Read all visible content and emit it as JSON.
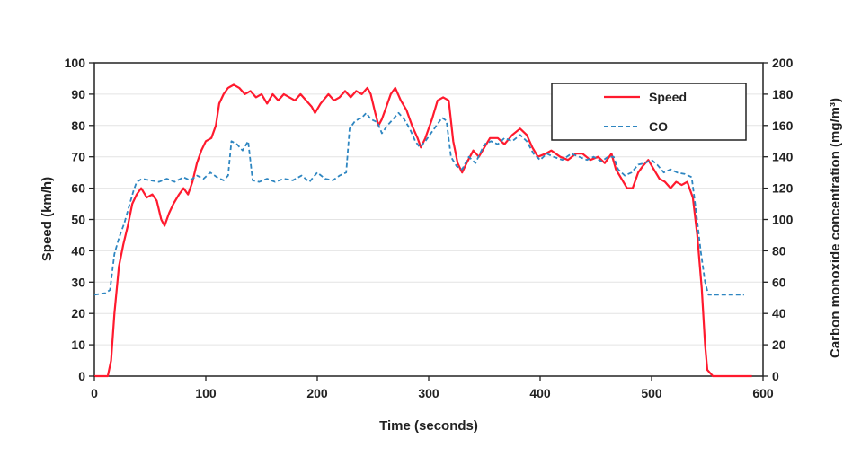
{
  "chart_data": {
    "type": "line",
    "xlabel": "Time (seconds)",
    "ylabel_left": "Speed (km/h)",
    "ylabel_right": "Carbon monoxide concentration (mg/m³)",
    "xlim": [
      0,
      600
    ],
    "ylim_left": [
      0,
      100
    ],
    "ylim_right": [
      0,
      200
    ],
    "x_ticks": [
      0,
      100,
      200,
      300,
      400,
      500,
      600
    ],
    "y_left_ticks": [
      0,
      10,
      20,
      30,
      40,
      50,
      60,
      70,
      80,
      90,
      100
    ],
    "y_right_ticks": [
      0,
      20,
      40,
      60,
      80,
      100,
      120,
      140,
      160,
      180,
      200
    ],
    "grid": true,
    "legend_position": "top-right",
    "series": [
      {
        "name": "Speed",
        "axis": "left",
        "color": "#ff1a2e",
        "style": "solid",
        "points": [
          [
            0,
            0
          ],
          [
            12,
            0
          ],
          [
            15,
            5
          ],
          [
            18,
            20
          ],
          [
            22,
            35
          ],
          [
            26,
            42
          ],
          [
            30,
            48
          ],
          [
            34,
            55
          ],
          [
            38,
            58
          ],
          [
            42,
            60
          ],
          [
            47,
            57
          ],
          [
            52,
            58
          ],
          [
            56,
            56
          ],
          [
            60,
            50
          ],
          [
            63,
            48
          ],
          [
            67,
            52
          ],
          [
            71,
            55
          ],
          [
            76,
            58
          ],
          [
            80,
            60
          ],
          [
            84,
            58
          ],
          [
            88,
            62
          ],
          [
            92,
            68
          ],
          [
            96,
            72
          ],
          [
            100,
            75
          ],
          [
            105,
            76
          ],
          [
            109,
            80
          ],
          [
            112,
            87
          ],
          [
            116,
            90
          ],
          [
            120,
            92
          ],
          [
            125,
            93
          ],
          [
            130,
            92
          ],
          [
            135,
            90
          ],
          [
            140,
            91
          ],
          [
            145,
            89
          ],
          [
            150,
            90
          ],
          [
            155,
            87
          ],
          [
            160,
            90
          ],
          [
            165,
            88
          ],
          [
            170,
            90
          ],
          [
            175,
            89
          ],
          [
            180,
            88
          ],
          [
            185,
            90
          ],
          [
            190,
            88
          ],
          [
            195,
            86
          ],
          [
            198,
            84
          ],
          [
            203,
            87
          ],
          [
            210,
            90
          ],
          [
            215,
            88
          ],
          [
            220,
            89
          ],
          [
            225,
            91
          ],
          [
            230,
            89
          ],
          [
            235,
            91
          ],
          [
            240,
            90
          ],
          [
            245,
            92
          ],
          [
            248,
            90
          ],
          [
            252,
            84
          ],
          [
            255,
            80
          ],
          [
            258,
            82
          ],
          [
            262,
            86
          ],
          [
            266,
            90
          ],
          [
            270,
            92
          ],
          [
            275,
            88
          ],
          [
            280,
            85
          ],
          [
            285,
            80
          ],
          [
            290,
            76
          ],
          [
            293,
            73
          ],
          [
            297,
            76
          ],
          [
            303,
            82
          ],
          [
            308,
            88
          ],
          [
            313,
            89
          ],
          [
            318,
            88
          ],
          [
            322,
            75
          ],
          [
            326,
            68
          ],
          [
            330,
            65
          ],
          [
            334,
            68
          ],
          [
            340,
            72
          ],
          [
            345,
            70
          ],
          [
            350,
            73
          ],
          [
            355,
            76
          ],
          [
            362,
            76
          ],
          [
            368,
            74
          ],
          [
            375,
            77
          ],
          [
            382,
            79
          ],
          [
            388,
            77
          ],
          [
            393,
            73
          ],
          [
            398,
            70
          ],
          [
            405,
            71
          ],
          [
            410,
            72
          ],
          [
            418,
            70
          ],
          [
            425,
            69
          ],
          [
            432,
            71
          ],
          [
            438,
            71
          ],
          [
            445,
            69
          ],
          [
            452,
            70
          ],
          [
            458,
            68
          ],
          [
            464,
            71
          ],
          [
            468,
            66
          ],
          [
            473,
            63
          ],
          [
            478,
            60
          ],
          [
            483,
            60
          ],
          [
            488,
            65
          ],
          [
            492,
            67
          ],
          [
            497,
            69
          ],
          [
            502,
            66
          ],
          [
            507,
            63
          ],
          [
            512,
            62
          ],
          [
            517,
            60
          ],
          [
            522,
            62
          ],
          [
            527,
            61
          ],
          [
            532,
            62
          ],
          [
            537,
            57
          ],
          [
            541,
            45
          ],
          [
            545,
            28
          ],
          [
            548,
            10
          ],
          [
            550,
            2
          ],
          [
            555,
            0
          ],
          [
            590,
            0
          ]
        ]
      },
      {
        "name": "CO",
        "axis": "right",
        "color": "#2e86c1",
        "style": "dashed",
        "points": [
          [
            0,
            52
          ],
          [
            10,
            53
          ],
          [
            14,
            55
          ],
          [
            18,
            78
          ],
          [
            22,
            88
          ],
          [
            27,
            98
          ],
          [
            31,
            108
          ],
          [
            35,
            118
          ],
          [
            38,
            124
          ],
          [
            43,
            126
          ],
          [
            50,
            125
          ],
          [
            58,
            124
          ],
          [
            65,
            126
          ],
          [
            72,
            124
          ],
          [
            80,
            127
          ],
          [
            86,
            125
          ],
          [
            92,
            128
          ],
          [
            98,
            126
          ],
          [
            104,
            130
          ],
          [
            110,
            127
          ],
          [
            116,
            125
          ],
          [
            120,
            128
          ],
          [
            123,
            150
          ],
          [
            128,
            148
          ],
          [
            133,
            144
          ],
          [
            138,
            150
          ],
          [
            142,
            125
          ],
          [
            148,
            124
          ],
          [
            155,
            126
          ],
          [
            162,
            124
          ],
          [
            170,
            126
          ],
          [
            178,
            125
          ],
          [
            186,
            128
          ],
          [
            193,
            124
          ],
          [
            200,
            130
          ],
          [
            207,
            126
          ],
          [
            214,
            125
          ],
          [
            220,
            128
          ],
          [
            226,
            130
          ],
          [
            229,
            158
          ],
          [
            234,
            163
          ],
          [
            240,
            165
          ],
          [
            244,
            168
          ],
          [
            248,
            164
          ],
          [
            254,
            162
          ],
          [
            258,
            155
          ],
          [
            263,
            160
          ],
          [
            268,
            164
          ],
          [
            273,
            168
          ],
          [
            278,
            164
          ],
          [
            283,
            158
          ],
          [
            288,
            150
          ],
          [
            292,
            146
          ],
          [
            297,
            150
          ],
          [
            302,
            155
          ],
          [
            307,
            160
          ],
          [
            312,
            165
          ],
          [
            316,
            163
          ],
          [
            320,
            140
          ],
          [
            325,
            134
          ],
          [
            330,
            132
          ],
          [
            336,
            140
          ],
          [
            342,
            136
          ],
          [
            350,
            148
          ],
          [
            356,
            150
          ],
          [
            362,
            148
          ],
          [
            368,
            152
          ],
          [
            375,
            150
          ],
          [
            382,
            154
          ],
          [
            388,
            150
          ],
          [
            394,
            142
          ],
          [
            400,
            138
          ],
          [
            406,
            142
          ],
          [
            412,
            140
          ],
          [
            420,
            138
          ],
          [
            428,
            142
          ],
          [
            435,
            140
          ],
          [
            442,
            138
          ],
          [
            448,
            140
          ],
          [
            455,
            137
          ],
          [
            461,
            140
          ],
          [
            466,
            140
          ],
          [
            470,
            132
          ],
          [
            476,
            128
          ],
          [
            482,
            130
          ],
          [
            488,
            135
          ],
          [
            494,
            136
          ],
          [
            500,
            138
          ],
          [
            505,
            135
          ],
          [
            511,
            130
          ],
          [
            517,
            132
          ],
          [
            523,
            130
          ],
          [
            530,
            129
          ],
          [
            536,
            127
          ],
          [
            540,
            105
          ],
          [
            544,
            80
          ],
          [
            548,
            60
          ],
          [
            551,
            52
          ],
          [
            560,
            52
          ],
          [
            583,
            52
          ]
        ]
      }
    ]
  }
}
